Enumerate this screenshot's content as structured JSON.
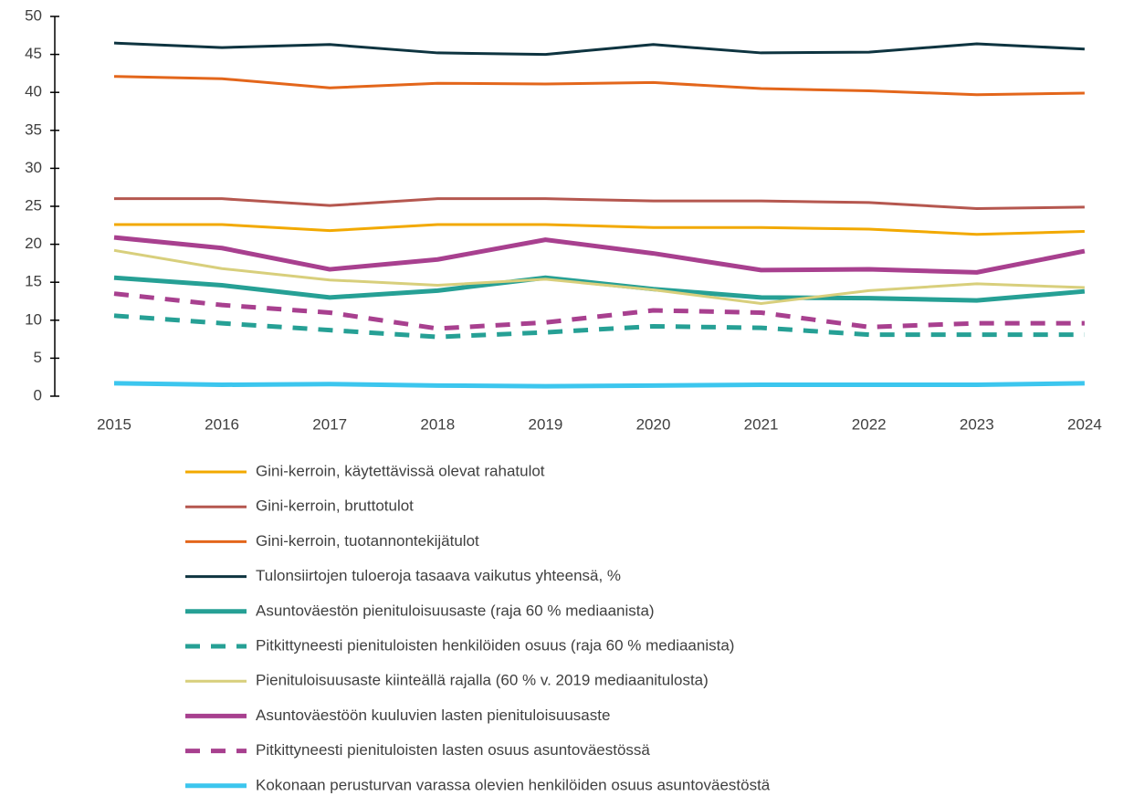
{
  "chart_data": {
    "type": "line",
    "categories": [
      "2015",
      "2016",
      "2017",
      "2018",
      "2019",
      "2020",
      "2021",
      "2022",
      "2023",
      "2024"
    ],
    "ylim": [
      0,
      50
    ],
    "yticks": [
      0,
      5,
      10,
      15,
      20,
      25,
      30,
      35,
      40,
      45,
      50
    ],
    "series": [
      {
        "name": "Gini-kerroin, käytettävissä olevat rahatulot",
        "color": "#f2a900",
        "style": "solid",
        "weight": "regular",
        "values": [
          22.6,
          22.6,
          21.8,
          22.6,
          22.6,
          22.2,
          22.2,
          22.0,
          21.3,
          21.7
        ]
      },
      {
        "name": "Gini-kerroin, bruttotulot",
        "color": "#b5574f",
        "style": "solid",
        "weight": "regular",
        "values": [
          26.0,
          26.0,
          25.1,
          26.0,
          26.0,
          25.7,
          25.7,
          25.5,
          24.7,
          24.9
        ]
      },
      {
        "name": "Gini-kerroin, tuotannontekijätulot",
        "color": "#e3661b",
        "style": "solid",
        "weight": "regular",
        "values": [
          42.1,
          41.8,
          40.6,
          41.2,
          41.1,
          41.3,
          40.5,
          40.2,
          39.7,
          39.9
        ]
      },
      {
        "name": "Tulonsiirtojen tuloeroja tasaava vaikutus yhteensä, %",
        "color": "#0e3440",
        "style": "solid",
        "weight": "regular",
        "values": [
          46.5,
          45.9,
          46.3,
          45.2,
          45.0,
          46.3,
          45.2,
          45.3,
          46.4,
          45.7
        ]
      },
      {
        "name": "Asuntoväestön pienituloisuusaste (raja 60 % mediaanista)",
        "color": "#26a095",
        "style": "solid",
        "weight": "heavy",
        "values": [
          15.6,
          14.6,
          13.0,
          13.9,
          15.6,
          14.1,
          13.0,
          12.9,
          12.6,
          13.8
        ]
      },
      {
        "name": "Pitkittyneesti pienituloisten henkilöiden osuus (raja 60 % mediaanista)",
        "color": "#26a095",
        "style": "dashed",
        "weight": "heavy",
        "values": [
          10.6,
          9.6,
          8.7,
          7.8,
          8.4,
          9.2,
          9.0,
          8.1,
          8.1,
          8.1
        ]
      },
      {
        "name": "Pienituloisuusaste kiinteällä rajalla (60 % v. 2019 mediaanitulosta)",
        "color": "#d8cf7c",
        "style": "solid",
        "weight": "regular",
        "values": [
          19.2,
          16.8,
          15.3,
          14.6,
          15.4,
          14.0,
          12.2,
          13.9,
          14.8,
          14.3
        ]
      },
      {
        "name": "Asuntoväestöön kuuluvien lasten pienituloisuusaste",
        "color": "#a8408f",
        "style": "solid",
        "weight": "heavy",
        "values": [
          20.9,
          19.5,
          16.7,
          18.0,
          20.6,
          18.8,
          16.6,
          16.7,
          16.3,
          19.1
        ]
      },
      {
        "name": "Pitkittyneesti pienituloisten lasten osuus asuntoväestössä",
        "color": "#a8408f",
        "style": "dashed",
        "weight": "heavy",
        "values": [
          13.5,
          12.0,
          11.0,
          8.9,
          9.7,
          11.3,
          11.0,
          9.1,
          9.6,
          9.6
        ]
      },
      {
        "name": "Kokonaan perusturvan varassa olevien henkilöiden osuus asuntoväestöstä",
        "color": "#3cc6ee",
        "style": "solid",
        "weight": "heavy",
        "values": [
          1.7,
          1.5,
          1.6,
          1.4,
          1.3,
          1.4,
          1.5,
          1.5,
          1.5,
          1.7
        ]
      }
    ]
  }
}
